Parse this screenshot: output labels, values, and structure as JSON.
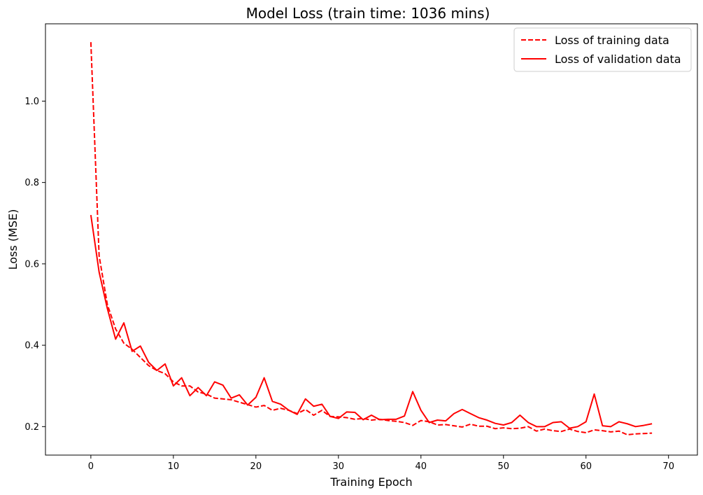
{
  "chart_data": {
    "type": "line",
    "title": "Model Loss (train time: 1036 mins)",
    "xlabel": "Training Epoch",
    "ylabel": "Loss (MSE)",
    "xlim": [
      -5.5,
      73.5
    ],
    "ylim": [
      0.13,
      1.19
    ],
    "xticks": [
      0,
      10,
      20,
      30,
      40,
      50,
      60,
      70
    ],
    "yticks": [
      0.2,
      0.4,
      0.6,
      0.8,
      1.0
    ],
    "grid": false,
    "legend_position": "top-right",
    "x": [
      0,
      1,
      2,
      3,
      4,
      5,
      6,
      7,
      8,
      9,
      10,
      11,
      12,
      13,
      14,
      15,
      16,
      17,
      18,
      19,
      20,
      21,
      22,
      23,
      24,
      25,
      26,
      27,
      28,
      29,
      30,
      31,
      32,
      33,
      34,
      35,
      36,
      37,
      38,
      39,
      40,
      41,
      42,
      43,
      44,
      45,
      46,
      47,
      48,
      49,
      50,
      51,
      52,
      53,
      54,
      55,
      56,
      57,
      58,
      59,
      60,
      61,
      62,
      63,
      64,
      65,
      66,
      67,
      68
    ],
    "series": [
      {
        "name": "Loss of training data",
        "color": "#ff0000",
        "linestyle": "dashed",
        "values": [
          1.145,
          0.62,
          0.5,
          0.44,
          0.405,
          0.39,
          0.37,
          0.35,
          0.338,
          0.33,
          0.31,
          0.3,
          0.3,
          0.285,
          0.28,
          0.27,
          0.268,
          0.266,
          0.26,
          0.254,
          0.248,
          0.252,
          0.24,
          0.245,
          0.24,
          0.232,
          0.242,
          0.228,
          0.24,
          0.225,
          0.224,
          0.222,
          0.218,
          0.22,
          0.216,
          0.218,
          0.215,
          0.213,
          0.21,
          0.203,
          0.215,
          0.212,
          0.204,
          0.205,
          0.202,
          0.199,
          0.206,
          0.201,
          0.201,
          0.195,
          0.197,
          0.195,
          0.196,
          0.2,
          0.189,
          0.194,
          0.19,
          0.188,
          0.194,
          0.188,
          0.185,
          0.192,
          0.19,
          0.187,
          0.189,
          0.18,
          0.182,
          0.183,
          0.184
        ]
      },
      {
        "name": "Loss of validation data",
        "color": "#ff0000",
        "linestyle": "solid",
        "values": [
          0.72,
          0.58,
          0.49,
          0.415,
          0.455,
          0.385,
          0.398,
          0.358,
          0.338,
          0.354,
          0.3,
          0.32,
          0.276,
          0.296,
          0.276,
          0.31,
          0.302,
          0.27,
          0.278,
          0.253,
          0.272,
          0.32,
          0.262,
          0.255,
          0.24,
          0.23,
          0.268,
          0.25,
          0.255,
          0.225,
          0.22,
          0.236,
          0.235,
          0.217,
          0.228,
          0.217,
          0.218,
          0.218,
          0.226,
          0.286,
          0.24,
          0.21,
          0.216,
          0.214,
          0.232,
          0.242,
          0.232,
          0.222,
          0.216,
          0.208,
          0.204,
          0.21,
          0.228,
          0.21,
          0.2,
          0.2,
          0.21,
          0.212,
          0.196,
          0.2,
          0.212,
          0.28,
          0.202,
          0.2,
          0.212,
          0.207,
          0.2,
          0.203,
          0.207
        ]
      }
    ]
  }
}
